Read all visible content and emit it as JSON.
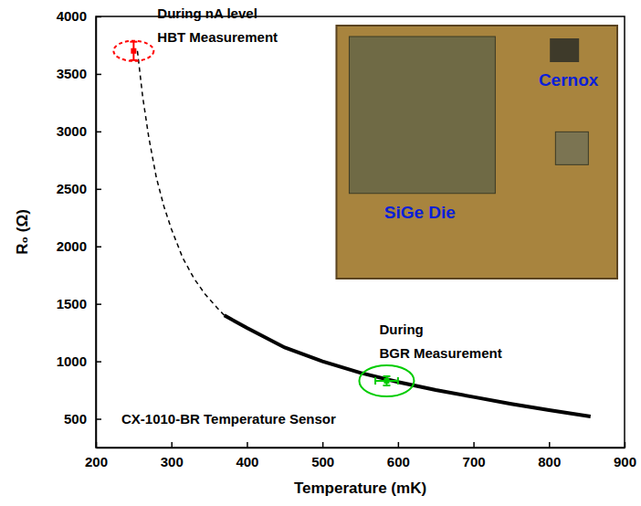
{
  "chart_data": {
    "type": "line",
    "x_label": "Temperature (mK)",
    "y_label": "R₀ (Ω)",
    "xlim": [
      200,
      900
    ],
    "xticks": [
      200,
      300,
      400,
      500,
      600,
      700,
      800,
      900
    ],
    "ylim": [
      250,
      4000
    ],
    "yticks": [
      500,
      1000,
      1500,
      2000,
      2500,
      3000,
      3500,
      4000
    ],
    "grid": false,
    "series": [
      {
        "color": "#000000",
        "line_style": "dashed",
        "x": [
          255,
          262,
          270,
          280,
          290,
          300,
          315,
          330,
          345,
          360,
          370
        ],
        "values": [
          3700,
          3300,
          2950,
          2600,
          2350,
          2150,
          1900,
          1720,
          1580,
          1470,
          1400
        ]
      },
      {
        "color": "#000000",
        "line_style": "solid",
        "x": [
          370,
          400,
          450,
          500,
          550,
          600,
          650,
          700,
          750,
          800,
          855
        ],
        "values": [
          1400,
          1290,
          1120,
          1000,
          900,
          820,
          750,
          690,
          630,
          575,
          520
        ]
      }
    ],
    "annotations": [
      {
        "text": [
          "During nA level",
          "HBT Measurement"
        ],
        "x": 250,
        "y": 3700,
        "y_error": 80,
        "color": "#ff0000",
        "marker": "dashed-ellipse"
      },
      {
        "text": [
          "During",
          "BGR Measurement"
        ],
        "x": 585,
        "y": 830,
        "x_error": 15,
        "y_error": 40,
        "color": "#00cc00",
        "marker": "ellipse"
      }
    ],
    "caption": "CX-1010-BR Temperature Sensor",
    "inset": {
      "labels": [
        "SiGe Die",
        "Cernox"
      ],
      "color": "#0a1fd8"
    }
  }
}
